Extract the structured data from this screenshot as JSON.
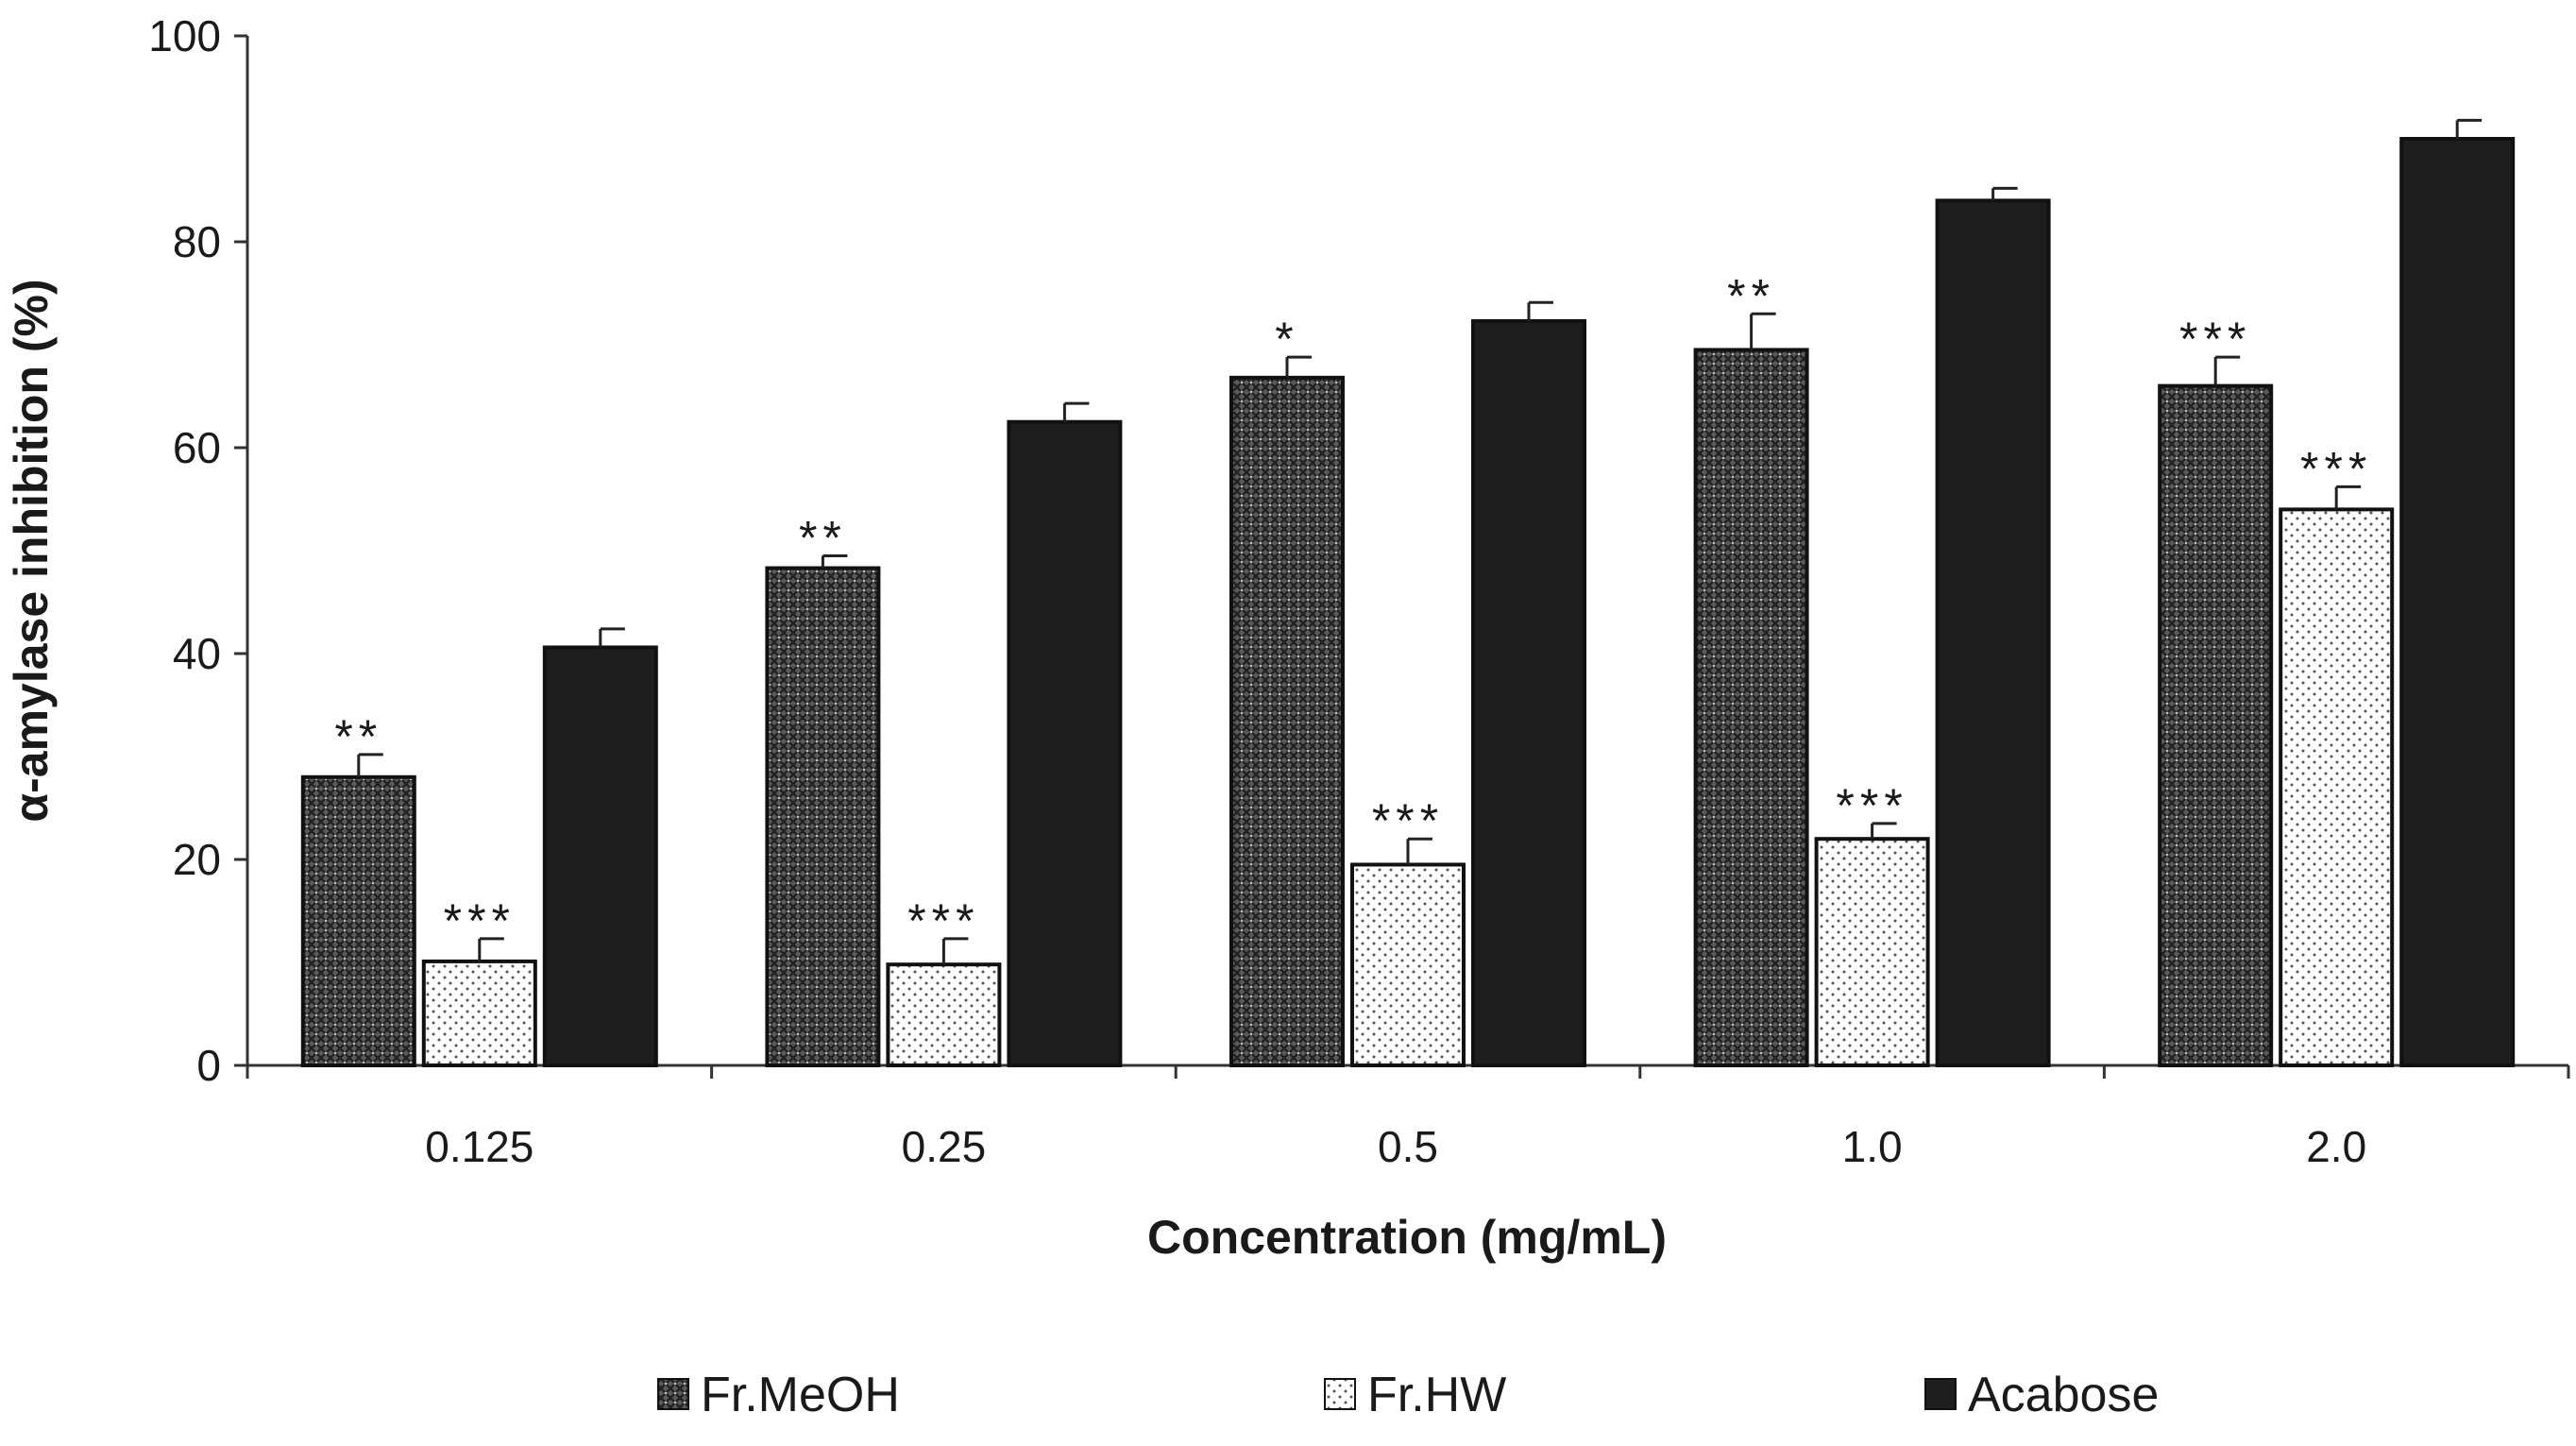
{
  "chart_data": {
    "type": "bar",
    "title": "",
    "xlabel": "Concentration (mg/mL)",
    "ylabel": "α-amylase inhibition (%)",
    "ylim": [
      0,
      100
    ],
    "yticks": [
      0,
      20,
      40,
      60,
      80,
      100
    ],
    "categories": [
      "0.125",
      "0.25",
      "0.5",
      "1.0",
      "2.0"
    ],
    "series": [
      {
        "name": "Fr.MeOH",
        "pattern": "crosshatch",
        "values": [
          28,
          48.3,
          66.8,
          69.5,
          66
        ],
        "errors": [
          2.2,
          1.2,
          2,
          3.5,
          2.8
        ],
        "significance": [
          "**",
          "**",
          "*",
          "**",
          "***"
        ]
      },
      {
        "name": "Fr.HW",
        "pattern": "dots",
        "values": [
          10.1,
          9.8,
          19.5,
          22,
          54
        ],
        "errors": [
          2.2,
          2.5,
          2.5,
          1.5,
          2.2
        ],
        "significance": [
          "***",
          "***",
          "***",
          "***",
          "***"
        ]
      },
      {
        "name": "Acabose",
        "pattern": "solid",
        "values": [
          40.6,
          62.5,
          72.3,
          84,
          90
        ],
        "errors": [
          1.8,
          1.8,
          1.8,
          1.2,
          1.8
        ],
        "significance": [
          "",
          "",
          "",
          "",
          ""
        ]
      }
    ],
    "grid": false,
    "legend_position": "bottom"
  },
  "colors": {
    "bar_stroke": "#111111",
    "solid_fill": "#1e1e1e",
    "axis": "#333333"
  }
}
